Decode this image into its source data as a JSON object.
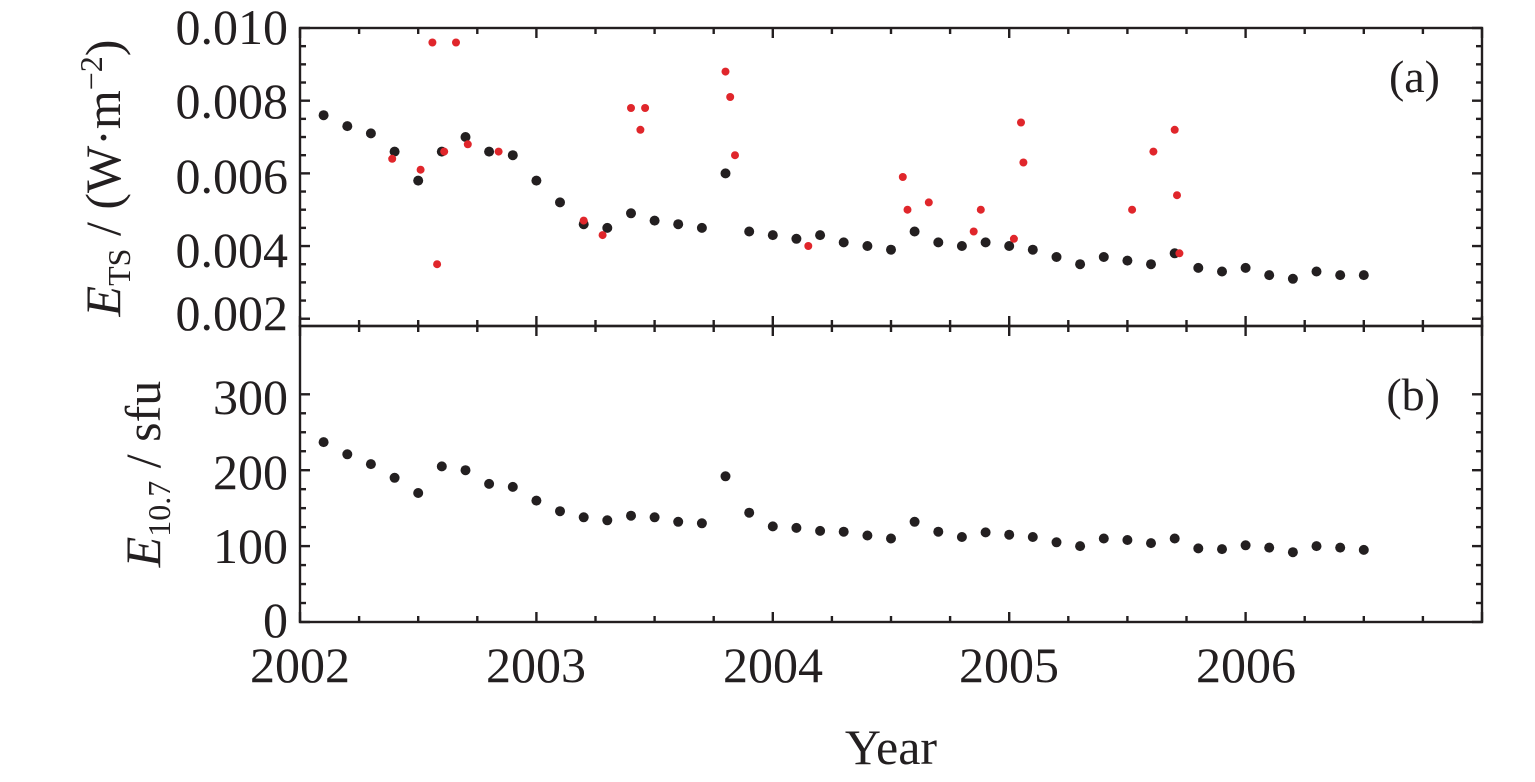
{
  "chart_data": [
    {
      "panel": "a",
      "type": "scatter",
      "panel_label": "(a)",
      "ylabel_main": "E",
      "ylabel_sub": "TS",
      "ylabel_unit_prefix": " / (W·m",
      "ylabel_unit_sup": "−2",
      "ylabel_unit_suffix": ")",
      "xlabel": "Year",
      "xlim": [
        2002.0,
        2007.0
      ],
      "ylim": [
        0.0018,
        0.01
      ],
      "y_ticks": [
        "0.002",
        "0.004",
        "0.006",
        "0.008",
        "0.010"
      ],
      "x_ticks": [
        "2002",
        "2003",
        "2004",
        "2005",
        "2006"
      ],
      "colors": {
        "main": "#231f20",
        "outlier": "#e0262b"
      },
      "series": [
        {
          "color": "main",
          "x": [
            2002.1,
            2002.2,
            2002.3,
            2002.4,
            2002.5,
            2002.6,
            2002.7,
            2002.8,
            2002.9,
            2003.0,
            2003.1,
            2003.2,
            2003.3,
            2003.4,
            2003.5,
            2003.6,
            2003.7,
            2003.8,
            2003.9,
            2004.0,
            2004.1,
            2004.2,
            2004.3,
            2004.4,
            2004.5,
            2004.6,
            2004.7,
            2004.8,
            2004.9,
            2005.0,
            2005.1,
            2005.2,
            2005.3,
            2005.4,
            2005.5,
            2005.6,
            2005.7,
            2005.8,
            2005.9,
            2006.0,
            2006.1,
            2006.2,
            2006.3,
            2006.4,
            2006.5
          ],
          "y": [
            0.0076,
            0.0073,
            0.0071,
            0.0066,
            0.0058,
            0.0066,
            0.007,
            0.0066,
            0.0065,
            0.0058,
            0.0052,
            0.0046,
            0.0045,
            0.0049,
            0.0047,
            0.0046,
            0.0045,
            0.006,
            0.0044,
            0.0043,
            0.0042,
            0.0043,
            0.0041,
            0.004,
            0.0039,
            0.0044,
            0.0041,
            0.004,
            0.0041,
            0.004,
            0.0039,
            0.0037,
            0.0035,
            0.0037,
            0.0036,
            0.0035,
            0.0038,
            0.0034,
            0.0033,
            0.0034,
            0.0032,
            0.0031,
            0.0033,
            0.0032,
            0.0032
          ]
        },
        {
          "color": "outlier",
          "x": [
            2002.39,
            2002.51,
            2002.56,
            2002.58,
            2002.61,
            2002.66,
            2002.71,
            2002.84,
            2003.2,
            2003.28,
            2003.4,
            2003.44,
            2003.46,
            2003.8,
            2003.82,
            2003.84,
            2004.15,
            2004.55,
            2004.57,
            2004.66,
            2004.85,
            2004.88,
            2005.02,
            2005.05,
            2005.06,
            2005.52,
            2005.61,
            2005.7,
            2005.71,
            2005.72
          ],
          "y": [
            0.0064,
            0.0061,
            0.0096,
            0.0035,
            0.0066,
            0.0096,
            0.0068,
            0.0066,
            0.0047,
            0.0043,
            0.0078,
            0.0072,
            0.0078,
            0.0088,
            0.0081,
            0.0065,
            0.004,
            0.0059,
            0.005,
            0.0052,
            0.0044,
            0.005,
            0.0042,
            0.0074,
            0.0063,
            0.005,
            0.0066,
            0.0072,
            0.0054,
            0.0038
          ]
        }
      ]
    },
    {
      "panel": "b",
      "type": "scatter",
      "panel_label": "(b)",
      "ylabel_main": "E",
      "ylabel_sub": "10.7",
      "ylabel_unit": " / sfu",
      "xlabel": "Year",
      "xlim": [
        2002.0,
        2007.0
      ],
      "ylim": [
        0,
        390
      ],
      "y_ticks": [
        "0",
        "100",
        "200",
        "300"
      ],
      "x_ticks": [
        "2002",
        "2003",
        "2004",
        "2005",
        "2006"
      ],
      "series": [
        {
          "color": "main",
          "x": [
            2002.1,
            2002.2,
            2002.3,
            2002.4,
            2002.5,
            2002.6,
            2002.7,
            2002.8,
            2002.9,
            2003.0,
            2003.1,
            2003.2,
            2003.3,
            2003.4,
            2003.5,
            2003.6,
            2003.7,
            2003.8,
            2003.9,
            2004.0,
            2004.1,
            2004.2,
            2004.3,
            2004.4,
            2004.5,
            2004.6,
            2004.7,
            2004.8,
            2004.9,
            2005.0,
            2005.1,
            2005.2,
            2005.3,
            2005.4,
            2005.5,
            2005.6,
            2005.7,
            2005.8,
            2005.9,
            2006.0,
            2006.1,
            2006.2,
            2006.3,
            2006.4,
            2006.5
          ],
          "y": [
            237,
            221,
            208,
            190,
            170,
            205,
            200,
            182,
            178,
            160,
            146,
            138,
            134,
            140,
            138,
            132,
            130,
            192,
            144,
            126,
            124,
            120,
            119,
            114,
            110,
            132,
            119,
            112,
            118,
            115,
            112,
            105,
            100,
            110,
            108,
            104,
            110,
            97,
            96,
            101,
            98,
            92,
            100,
            98,
            95
          ]
        }
      ]
    }
  ]
}
